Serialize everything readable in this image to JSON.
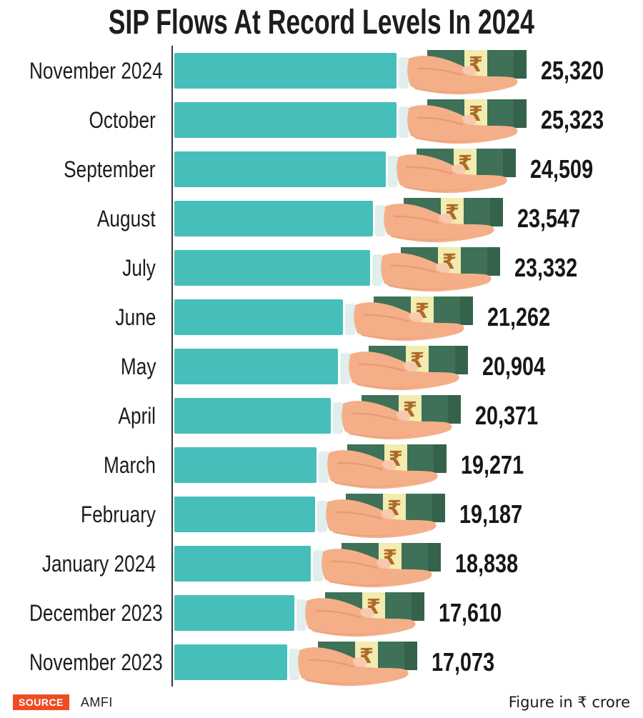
{
  "title": "SIP Flows At Record Levels In 2024",
  "chart_data": {
    "type": "bar",
    "orientation": "horizontal",
    "title": "SIP Flows At Record Levels In 2024",
    "categories": [
      "November 2024",
      "October",
      "September",
      "August",
      "July",
      "June",
      "May",
      "April",
      "March",
      "February",
      "January 2024",
      "December 2023",
      "November 2023"
    ],
    "values": [
      25320,
      25323,
      24509,
      23547,
      23332,
      21262,
      20904,
      20371,
      19271,
      19187,
      18838,
      17610,
      17073
    ],
    "value_labels": [
      "25,320",
      "25,323",
      "24,509",
      "23,547",
      "23,332",
      "21,262",
      "20,904",
      "20,371",
      "19,271",
      "19,187",
      "18,838",
      "17,610",
      "17,073"
    ],
    "unit_note": "Figure in ₹ crore",
    "rupee_glyph": "₹",
    "value_axis_visible": false,
    "grid": false,
    "legend": false,
    "bar_icon": "hand-holding-cash-icon"
  },
  "footer": {
    "source_label": "SOURCE",
    "source_value": "AMFI",
    "unit_note": "Figure in ₹ crore"
  },
  "colors": {
    "bar": "#46BFBA",
    "axis": "#3A3A3A",
    "note_green": "#3E7157",
    "note_green_dark": "#35624B",
    "note_band": "#F2ECB0",
    "rupee_symbol": "#AF6A28",
    "skin": "#F5AF88",
    "skin_shadow": "#E79C72",
    "nail": "#F8C9AE",
    "cuff": "#E0EEED",
    "source_badge": "#EE4D23",
    "text": "#1D1D1D"
  }
}
